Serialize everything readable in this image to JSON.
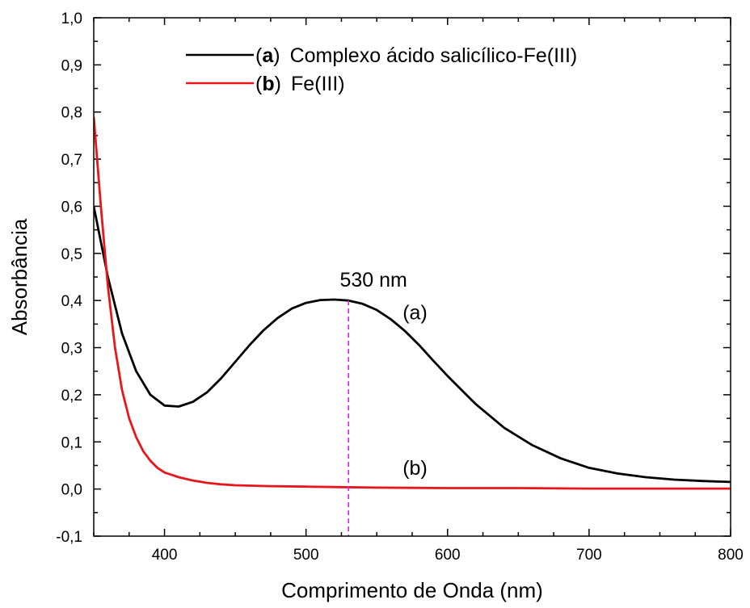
{
  "chart_data": {
    "type": "line",
    "xlabel": "Comprimento de Onda (nm)",
    "ylabel": "Absorbância",
    "xlim": [
      350,
      800
    ],
    "ylim": [
      -0.1,
      1.0
    ],
    "x_ticks": [
      400,
      500,
      600,
      700,
      800
    ],
    "x_tick_labels": [
      "400",
      "500",
      "600",
      "700",
      "800"
    ],
    "y_ticks": [
      -0.1,
      0.0,
      0.1,
      0.2,
      0.3,
      0.4,
      0.5,
      0.6,
      0.7,
      0.8,
      0.9,
      1.0
    ],
    "y_tick_labels": [
      "-0,1",
      "0,0",
      "0,1",
      "0,2",
      "0,3",
      "0,4",
      "0,5",
      "0,6",
      "0,7",
      "0,8",
      "0,9",
      "1,0"
    ],
    "grid": false,
    "legend_position": "top-center",
    "series": [
      {
        "id": "a",
        "legend_letter": "a",
        "legend_text": "Complexo ácido salicílico-Fe(III)",
        "label": "(a)",
        "color": "#000000",
        "x": [
          350,
          360,
          370,
          380,
          390,
          400,
          410,
          420,
          430,
          440,
          450,
          460,
          470,
          480,
          490,
          500,
          510,
          520,
          530,
          540,
          550,
          560,
          570,
          580,
          590,
          600,
          620,
          640,
          660,
          680,
          700,
          720,
          740,
          760,
          780,
          800
        ],
        "y": [
          0.6,
          0.45,
          0.33,
          0.25,
          0.2,
          0.177,
          0.175,
          0.185,
          0.205,
          0.235,
          0.27,
          0.305,
          0.337,
          0.363,
          0.383,
          0.395,
          0.401,
          0.402,
          0.4,
          0.393,
          0.38,
          0.36,
          0.335,
          0.305,
          0.272,
          0.24,
          0.18,
          0.13,
          0.093,
          0.065,
          0.045,
          0.033,
          0.025,
          0.02,
          0.017,
          0.015
        ]
      },
      {
        "id": "b",
        "legend_letter": "b",
        "legend_text": "Fe(III)",
        "label": "(b)",
        "color": "#e8161b",
        "x": [
          350,
          355,
          360,
          365,
          370,
          375,
          380,
          385,
          390,
          395,
          400,
          410,
          420,
          430,
          440,
          450,
          475,
          500,
          525,
          550,
          600,
          650,
          700,
          750,
          800
        ],
        "y": [
          0.79,
          0.6,
          0.43,
          0.3,
          0.21,
          0.15,
          0.11,
          0.08,
          0.06,
          0.045,
          0.035,
          0.025,
          0.018,
          0.013,
          0.01,
          0.008,
          0.006,
          0.005,
          0.004,
          0.003,
          0.002,
          0.002,
          0.001,
          0.001,
          0.001
        ]
      }
    ],
    "annotations": [
      {
        "text": "530 nm",
        "x": 530,
        "y": 0.4,
        "color": "#e020e0"
      }
    ]
  }
}
